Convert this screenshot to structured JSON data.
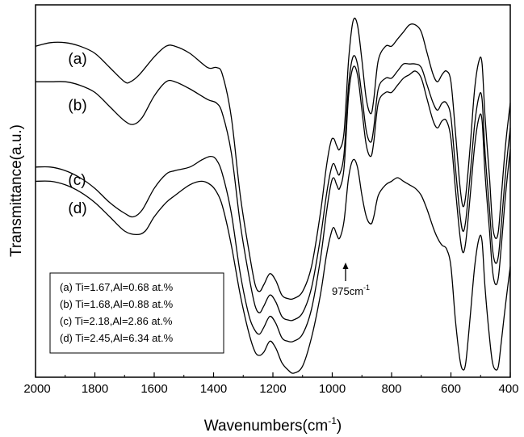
{
  "chart_data": {
    "type": "line",
    "title": "",
    "xlabel": "Wavenumbers(cm",
    "xlabel_sup": "-1",
    "xlabel_close": ")",
    "ylabel": "Transmittance(a.u.)",
    "xlim": [
      2000,
      400
    ],
    "x_reversed": true,
    "yticks_shown": false,
    "x_ticks": [
      2000,
      1800,
      1600,
      1400,
      1200,
      1000,
      800,
      600,
      400
    ],
    "x_tick_labels": [
      "2000",
      "1800",
      "1600",
      "1400",
      "1200",
      "1000",
      "800",
      "600",
      "400"
    ],
    "ylim": [
      0,
      100
    ],
    "grid": false,
    "series": [
      {
        "name": "(a)",
        "color": "#000000",
        "points": [
          [
            2000,
            92
          ],
          [
            1950,
            93
          ],
          [
            1900,
            93
          ],
          [
            1850,
            92
          ],
          [
            1800,
            90
          ],
          [
            1750,
            86
          ],
          [
            1700,
            82
          ],
          [
            1680,
            82
          ],
          [
            1650,
            84
          ],
          [
            1600,
            89
          ],
          [
            1560,
            92
          ],
          [
            1530,
            92
          ],
          [
            1480,
            90
          ],
          [
            1420,
            86
          ],
          [
            1390,
            86
          ],
          [
            1370,
            84
          ],
          [
            1340,
            72
          ],
          [
            1310,
            50
          ],
          [
            1280,
            34
          ],
          [
            1260,
            25
          ],
          [
            1245,
            23
          ],
          [
            1230,
            25
          ],
          [
            1210,
            28
          ],
          [
            1190,
            26
          ],
          [
            1170,
            22
          ],
          [
            1150,
            21
          ],
          [
            1130,
            21
          ],
          [
            1100,
            23
          ],
          [
            1070,
            30
          ],
          [
            1040,
            45
          ],
          [
            1020,
            58
          ],
          [
            1005,
            65
          ],
          [
            995,
            66
          ],
          [
            985,
            64
          ],
          [
            975,
            63
          ],
          [
            960,
            68
          ],
          [
            945,
            88
          ],
          [
            930,
            99
          ],
          [
            915,
            98
          ],
          [
            900,
            88
          ],
          [
            885,
            77
          ],
          [
            870,
            73
          ],
          [
            860,
            77
          ],
          [
            845,
            88
          ],
          [
            820,
            92
          ],
          [
            800,
            92
          ],
          [
            780,
            94
          ],
          [
            760,
            96
          ],
          [
            740,
            98
          ],
          [
            720,
            98
          ],
          [
            700,
            96
          ],
          [
            680,
            90
          ],
          [
            660,
            84
          ],
          [
            645,
            82
          ],
          [
            630,
            84
          ],
          [
            615,
            85
          ],
          [
            600,
            82
          ],
          [
            585,
            68
          ],
          [
            570,
            53
          ],
          [
            560,
            47
          ],
          [
            550,
            50
          ],
          [
            535,
            64
          ],
          [
            520,
            80
          ],
          [
            505,
            88
          ],
          [
            495,
            87
          ],
          [
            485,
            72
          ],
          [
            470,
            55
          ],
          [
            460,
            42
          ],
          [
            450,
            38
          ],
          [
            440,
            40
          ],
          [
            430,
            50
          ],
          [
            415,
            65
          ],
          [
            400,
            76
          ]
        ],
        "label": "(a)",
        "label_at": [
          1890,
          87
        ]
      },
      {
        "name": "(b)",
        "color": "#000000",
        "points": [
          [
            2000,
            82
          ],
          [
            1950,
            82
          ],
          [
            1900,
            82
          ],
          [
            1850,
            81
          ],
          [
            1800,
            79
          ],
          [
            1750,
            75
          ],
          [
            1700,
            71
          ],
          [
            1670,
            70
          ],
          [
            1640,
            72
          ],
          [
            1600,
            78
          ],
          [
            1560,
            82
          ],
          [
            1530,
            82
          ],
          [
            1480,
            80
          ],
          [
            1420,
            77
          ],
          [
            1390,
            76
          ],
          [
            1370,
            73
          ],
          [
            1340,
            62
          ],
          [
            1310,
            42
          ],
          [
            1280,
            27
          ],
          [
            1260,
            19
          ],
          [
            1245,
            17
          ],
          [
            1230,
            19
          ],
          [
            1210,
            22
          ],
          [
            1190,
            20
          ],
          [
            1170,
            16
          ],
          [
            1150,
            15
          ],
          [
            1130,
            15
          ],
          [
            1100,
            17
          ],
          [
            1070,
            24
          ],
          [
            1040,
            38
          ],
          [
            1020,
            50
          ],
          [
            1005,
            57
          ],
          [
            995,
            59
          ],
          [
            985,
            57
          ],
          [
            975,
            56
          ],
          [
            960,
            62
          ],
          [
            945,
            81
          ],
          [
            930,
            89
          ],
          [
            915,
            87
          ],
          [
            900,
            78
          ],
          [
            885,
            68
          ],
          [
            870,
            65
          ],
          [
            860,
            69
          ],
          [
            845,
            80
          ],
          [
            820,
            83
          ],
          [
            800,
            83
          ],
          [
            780,
            85
          ],
          [
            760,
            87
          ],
          [
            740,
            87
          ],
          [
            720,
            87
          ],
          [
            700,
            86
          ],
          [
            680,
            81
          ],
          [
            660,
            76
          ],
          [
            645,
            74
          ],
          [
            630,
            76
          ],
          [
            615,
            76
          ],
          [
            600,
            72
          ],
          [
            585,
            58
          ],
          [
            570,
            45
          ],
          [
            560,
            40
          ],
          [
            550,
            43
          ],
          [
            535,
            56
          ],
          [
            520,
            70
          ],
          [
            505,
            78
          ],
          [
            495,
            77
          ],
          [
            485,
            62
          ],
          [
            470,
            46
          ],
          [
            460,
            35
          ],
          [
            450,
            31
          ],
          [
            440,
            33
          ],
          [
            430,
            42
          ],
          [
            415,
            57
          ],
          [
            400,
            69
          ]
        ],
        "label": "(b)",
        "label_at": [
          1890,
          74
        ]
      },
      {
        "name": "(c)",
        "color": "#000000",
        "points": [
          [
            2000,
            58
          ],
          [
            1950,
            58
          ],
          [
            1900,
            57
          ],
          [
            1850,
            55
          ],
          [
            1800,
            52
          ],
          [
            1750,
            48
          ],
          [
            1700,
            45
          ],
          [
            1670,
            44
          ],
          [
            1640,
            46
          ],
          [
            1600,
            52
          ],
          [
            1560,
            56
          ],
          [
            1530,
            57
          ],
          [
            1480,
            58
          ],
          [
            1440,
            60
          ],
          [
            1410,
            61
          ],
          [
            1390,
            60
          ],
          [
            1370,
            56
          ],
          [
            1340,
            45
          ],
          [
            1310,
            28
          ],
          [
            1280,
            16
          ],
          [
            1260,
            12
          ],
          [
            1245,
            11
          ],
          [
            1230,
            13
          ],
          [
            1210,
            16
          ],
          [
            1190,
            14
          ],
          [
            1170,
            10
          ],
          [
            1150,
            9
          ],
          [
            1130,
            9
          ],
          [
            1100,
            11
          ],
          [
            1070,
            18
          ],
          [
            1040,
            32
          ],
          [
            1020,
            45
          ],
          [
            1005,
            53
          ],
          [
            995,
            55
          ],
          [
            985,
            53
          ],
          [
            975,
            52
          ],
          [
            960,
            58
          ],
          [
            945,
            78
          ],
          [
            930,
            86
          ],
          [
            915,
            84
          ],
          [
            900,
            74
          ],
          [
            885,
            64
          ],
          [
            870,
            61
          ],
          [
            860,
            65
          ],
          [
            845,
            76
          ],
          [
            820,
            79
          ],
          [
            800,
            79
          ],
          [
            780,
            81
          ],
          [
            760,
            83
          ],
          [
            740,
            84
          ],
          [
            720,
            85
          ],
          [
            700,
            83
          ],
          [
            680,
            77
          ],
          [
            660,
            71
          ],
          [
            645,
            69
          ],
          [
            630,
            71
          ],
          [
            615,
            71
          ],
          [
            600,
            66
          ],
          [
            585,
            52
          ],
          [
            570,
            39
          ],
          [
            560,
            34
          ],
          [
            550,
            37
          ],
          [
            535,
            50
          ],
          [
            520,
            64
          ],
          [
            505,
            72
          ],
          [
            495,
            71
          ],
          [
            485,
            56
          ],
          [
            470,
            40
          ],
          [
            460,
            29
          ],
          [
            450,
            25
          ],
          [
            440,
            27
          ],
          [
            430,
            36
          ],
          [
            415,
            51
          ],
          [
            400,
            63
          ]
        ],
        "label": "(c)",
        "label_at": [
          1890,
          53
        ]
      },
      {
        "name": "(d)",
        "color": "#000000",
        "points": [
          [
            2000,
            54
          ],
          [
            1950,
            54
          ],
          [
            1900,
            53
          ],
          [
            1850,
            51
          ],
          [
            1800,
            48
          ],
          [
            1750,
            44
          ],
          [
            1700,
            40
          ],
          [
            1660,
            39
          ],
          [
            1630,
            40
          ],
          [
            1600,
            44
          ],
          [
            1560,
            48
          ],
          [
            1530,
            50
          ],
          [
            1480,
            53
          ],
          [
            1440,
            54
          ],
          [
            1410,
            53
          ],
          [
            1390,
            51
          ],
          [
            1370,
            47
          ],
          [
            1340,
            36
          ],
          [
            1310,
            22
          ],
          [
            1280,
            11
          ],
          [
            1260,
            6
          ],
          [
            1245,
            5
          ],
          [
            1230,
            6
          ],
          [
            1210,
            9
          ],
          [
            1190,
            7
          ],
          [
            1170,
            3
          ],
          [
            1150,
            1
          ],
          [
            1130,
            0
          ],
          [
            1100,
            2
          ],
          [
            1070,
            10
          ],
          [
            1040,
            22
          ],
          [
            1020,
            33
          ],
          [
            1005,
            39
          ],
          [
            995,
            41
          ],
          [
            985,
            39
          ],
          [
            975,
            38
          ],
          [
            960,
            43
          ],
          [
            945,
            55
          ],
          [
            930,
            60
          ],
          [
            915,
            58
          ],
          [
            900,
            50
          ],
          [
            885,
            44
          ],
          [
            870,
            42
          ],
          [
            860,
            44
          ],
          [
            845,
            50
          ],
          [
            820,
            53
          ],
          [
            800,
            54
          ],
          [
            780,
            55
          ],
          [
            760,
            54
          ],
          [
            740,
            53
          ],
          [
            720,
            52
          ],
          [
            700,
            50
          ],
          [
            680,
            46
          ],
          [
            660,
            41
          ],
          [
            645,
            38
          ],
          [
            630,
            36
          ],
          [
            615,
            35
          ],
          [
            600,
            30
          ],
          [
            585,
            15
          ],
          [
            570,
            4
          ],
          [
            560,
            1
          ],
          [
            550,
            3
          ],
          [
            535,
            16
          ],
          [
            520,
            30
          ],
          [
            505,
            38
          ],
          [
            495,
            37
          ],
          [
            485,
            24
          ],
          [
            470,
            10
          ],
          [
            460,
            3
          ],
          [
            450,
            1
          ],
          [
            440,
            2
          ],
          [
            430,
            9
          ],
          [
            415,
            20
          ],
          [
            400,
            30
          ]
        ],
        "label": "(d)",
        "label_at": [
          1890,
          45
        ]
      }
    ],
    "legend": {
      "placement": "bottom-left",
      "entries": [
        "(a) Ti=1.67,Al=0.68 at.%",
        "(b) Ti=1.68,Al=0.88 at.%",
        "(c) Ti=2.18,Al=2.86 at.%",
        "(d) Ti=2.45,Al=6.34 at.%"
      ]
    },
    "annotation": {
      "text": "975cm",
      "sup": "-1",
      "x": 975,
      "arrow": "up"
    }
  }
}
